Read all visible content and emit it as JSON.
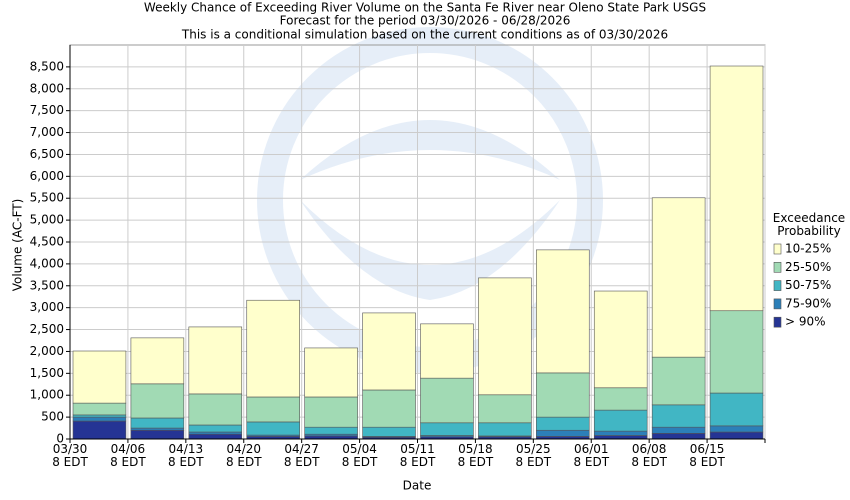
{
  "chart_data": {
    "type": "stacked_bar",
    "title": "Weekly Chance of Exceeding River Volume on the Santa Fe River near Oleno State Park USGS",
    "subtitle": "Forecast for the period 03/30/2026 - 06/28/2026",
    "note": "This is a conditional simulation based on the current conditions as of 03/30/2026",
    "x_label": "Date",
    "y_label": "Volume (AC-FT)",
    "legend_title": "Exceedance Probability",
    "legend_position": "right",
    "grid": true,
    "categories": [
      "03/30 8 EDT",
      "04/06 8 EDT",
      "04/13 8 EDT",
      "04/20 8 EDT",
      "04/27 8 EDT",
      "05/04 8 EDT",
      "05/11 8 EDT",
      "05/18 8 EDT",
      "05/25 8 EDT",
      "06/01 8 EDT",
      "06/08 8 EDT",
      "06/15 8 EDT"
    ],
    "series": [
      {
        "name": "> 90%",
        "color": "#253494",
        "values": [
          410,
          200,
          110,
          60,
          70,
          40,
          50,
          50,
          60,
          80,
          130,
          160
        ]
      },
      {
        "name": "75-90%",
        "color": "#2c7fb8",
        "values": [
          90,
          50,
          50,
          30,
          40,
          20,
          30,
          20,
          140,
          100,
          140,
          140
        ]
      },
      {
        "name": "50-75%",
        "color": "#41b6c4",
        "values": [
          50,
          230,
          160,
          300,
          160,
          210,
          290,
          300,
          300,
          480,
          510,
          750
        ]
      },
      {
        "name": "25-50%",
        "color": "#a1dab4",
        "values": [
          270,
          780,
          710,
          570,
          690,
          850,
          1020,
          640,
          1010,
          510,
          1090,
          1880
        ]
      },
      {
        "name": "10-25%",
        "color": "#ffffcc",
        "values": [
          1190,
          1050,
          1530,
          2210,
          1120,
          1760,
          1240,
          2670,
          2810,
          2210,
          3640,
          5590
        ]
      }
    ],
    "ylim": [
      0,
      9000
    ],
    "yticks": [
      0,
      500,
      {
        "value": 1000,
        "label": "1,000"
      },
      {
        "value": 1500,
        "label": "1,500"
      },
      {
        "value": 2000,
        "label": "2,000"
      },
      {
        "value": 2500,
        "label": "2,500"
      },
      {
        "value": 3000,
        "label": "3,000"
      },
      {
        "value": 3500,
        "label": "3,500"
      },
      {
        "value": 4000,
        "label": "4,000"
      },
      {
        "value": 4500,
        "label": "4,500"
      },
      {
        "value": 5000,
        "label": "5,000"
      },
      {
        "value": 5500,
        "label": "5,500"
      },
      {
        "value": 6000,
        "label": "6,000"
      },
      {
        "value": 6500,
        "label": "6,500"
      },
      {
        "value": 7000,
        "label": "7,000"
      },
      {
        "value": 7500,
        "label": "7,500"
      },
      {
        "value": 8000,
        "label": "8,000"
      },
      {
        "value": 8500,
        "label": "8,500"
      }
    ]
  }
}
